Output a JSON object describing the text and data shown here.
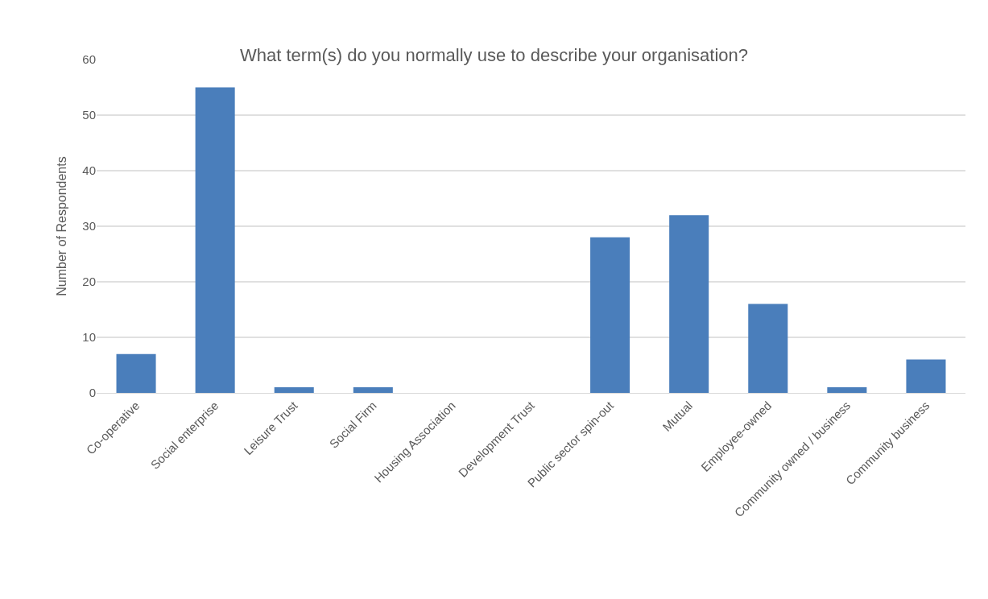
{
  "chart_data": {
    "type": "bar",
    "title": "What term(s) do you normally use to describe your organisation?",
    "ylabel": "Number of Respondents",
    "categories": [
      "Co-operative",
      "Social enterprise",
      "Leisure Trust",
      "Social Firm",
      "Housing Association",
      "Development Trust",
      "Public sector spin-out",
      "Mutual",
      "Employee-owned",
      "Community owned / business",
      "Community business"
    ],
    "values": [
      7,
      55,
      1,
      1,
      0,
      0,
      28,
      32,
      16,
      1,
      6
    ],
    "color": "#4a7ebb",
    "ylim": [
      0,
      60
    ],
    "yticks": [
      0,
      10,
      20,
      30,
      40,
      50,
      60
    ],
    "grid": "y"
  }
}
